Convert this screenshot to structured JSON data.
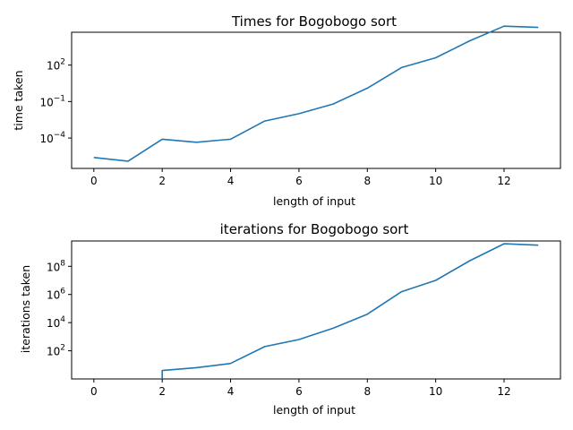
{
  "chart_data": [
    {
      "type": "line",
      "title": "Times for Bogobogo sort",
      "xlabel": "length of input",
      "ylabel": "time taken",
      "yscale": "log",
      "xlim": [
        -0.65,
        13.65
      ],
      "ylim_log10": [
        -6.5,
        4.7
      ],
      "xticks": [
        0,
        2,
        4,
        6,
        8,
        10,
        12
      ],
      "yticks": [
        {
          "exp": 2,
          "base": "10",
          "power": "2"
        },
        {
          "exp": -1,
          "base": "10",
          "power": "−1"
        },
        {
          "exp": -4,
          "base": "10",
          "power": "−4"
        }
      ],
      "x": [
        0,
        1,
        2,
        3,
        4,
        5,
        6,
        7,
        8,
        9,
        10,
        11,
        12,
        13
      ],
      "y_log10": [
        -5.6,
        -5.9,
        -4.1,
        -4.35,
        -4.1,
        -2.6,
        -2.0,
        -1.2,
        0.1,
        1.8,
        2.6,
        4.0,
        5.2,
        5.1
      ],
      "grid": false,
      "color": "#1f77b4"
    },
    {
      "type": "line",
      "title": "iterations for Bogobogo sort",
      "xlabel": "length of input",
      "ylabel": "iterations taken",
      "yscale": "log",
      "xlim": [
        -0.65,
        13.65
      ],
      "ylim_log10": [
        0,
        9.8
      ],
      "xticks": [
        0,
        2,
        4,
        6,
        8,
        10,
        12
      ],
      "yticks": [
        {
          "exp": 2,
          "base": "10",
          "power": "2"
        },
        {
          "exp": 4,
          "base": "10",
          "power": "4"
        },
        {
          "exp": 6,
          "base": "10",
          "power": "6"
        },
        {
          "exp": 8,
          "base": "10",
          "power": "8"
        }
      ],
      "x": [
        2,
        2,
        3,
        4,
        5,
        6,
        7,
        8,
        9,
        10,
        11,
        12,
        13
      ],
      "y_log10": [
        0,
        0.6,
        0.8,
        1.1,
        2.3,
        2.8,
        3.6,
        4.6,
        6.2,
        7.0,
        8.4,
        9.6,
        9.5
      ],
      "grid": false,
      "color": "#1f77b4"
    }
  ]
}
